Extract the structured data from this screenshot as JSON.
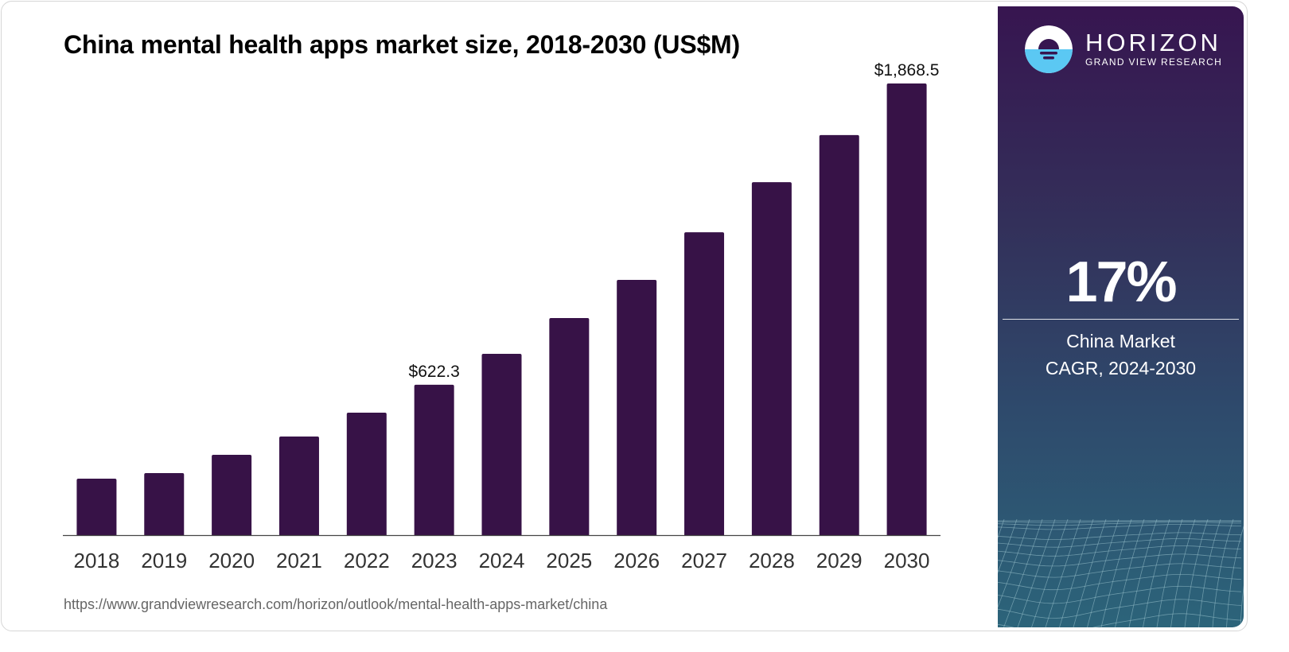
{
  "title": "China mental health apps market size, 2018-2030 (US$M)",
  "source": "https://www.grandviewresearch.com/horizon/outlook/mental-health-apps-market/china",
  "brand": {
    "name": "HORIZON",
    "subtitle": "GRAND VIEW RESEARCH",
    "logo_icon": "sunset-horizon-logo-icon"
  },
  "side_panel": {
    "cagr_value": "17%",
    "cagr_label_line1": "China Market",
    "cagr_label_line2": "CAGR, 2024-2030"
  },
  "colors": {
    "bar": "#371247",
    "panel_top": "#371550",
    "panel_bottom": "#2c647a",
    "logo_light_blue": "#5bc8f3"
  },
  "chart_data": {
    "type": "bar",
    "title": "China mental health apps market size, 2018-2030 (US$M)",
    "xlabel": "",
    "ylabel": "",
    "categories": [
      "2018",
      "2019",
      "2020",
      "2021",
      "2022",
      "2023",
      "2024",
      "2025",
      "2026",
      "2027",
      "2028",
      "2029",
      "2030"
    ],
    "values": [
      233.6,
      256.6,
      332.2,
      407.9,
      506.5,
      622.3,
      750.0,
      898.0,
      1056.0,
      1253.0,
      1460.0,
      1655.0,
      1868.5
    ],
    "data_labels": [
      {
        "category": "2023",
        "text": "$622.3"
      },
      {
        "category": "2030",
        "text": "$1,868.5"
      }
    ],
    "ylim": [
      0,
      1868.5
    ],
    "grid": false,
    "legend": "none"
  }
}
